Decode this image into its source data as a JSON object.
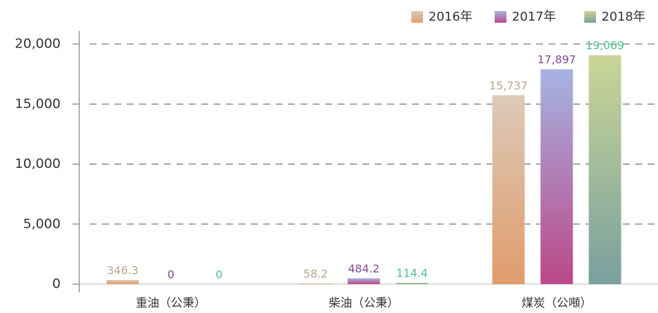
{
  "chart_data": {
    "type": "bar",
    "categories": [
      "重油（公秉）",
      "柴油（公秉）",
      "煤炭（公噸）"
    ],
    "series": [
      {
        "name": "2016年",
        "color": "#e0a070",
        "gradient": [
          "#dccab8",
          "#e09c6c"
        ],
        "label_color": "#b9a48c",
        "values": [
          346.3,
          58.2,
          15737
        ],
        "value_labels": [
          "346.3",
          "58.2",
          "15,737"
        ]
      },
      {
        "name": "2017年",
        "color": "#b24f90",
        "gradient": [
          "#a6b4e2",
          "#bb4888"
        ],
        "label_color": "#86489a",
        "values": [
          0,
          484.2,
          17897
        ],
        "value_labels": [
          "0",
          "484.2",
          "17,897"
        ]
      },
      {
        "name": "2018年",
        "color": "#86a69a",
        "gradient": [
          "#cad596",
          "#78a09e"
        ],
        "label_color": "#4dc08c",
        "values": [
          0,
          114.4,
          19069
        ],
        "value_labels": [
          "0",
          "114.4",
          "19,069"
        ]
      }
    ],
    "ylim": [
      0,
      20000
    ],
    "yticks": [
      0,
      {
        "value": 5000,
        "label": "5,000"
      },
      {
        "value": 10000,
        "label": "10,000"
      },
      {
        "value": 15000,
        "label": "15,000"
      },
      {
        "value": 20000,
        "label": "20,000"
      }
    ],
    "grid": true,
    "legend": "top-right"
  }
}
